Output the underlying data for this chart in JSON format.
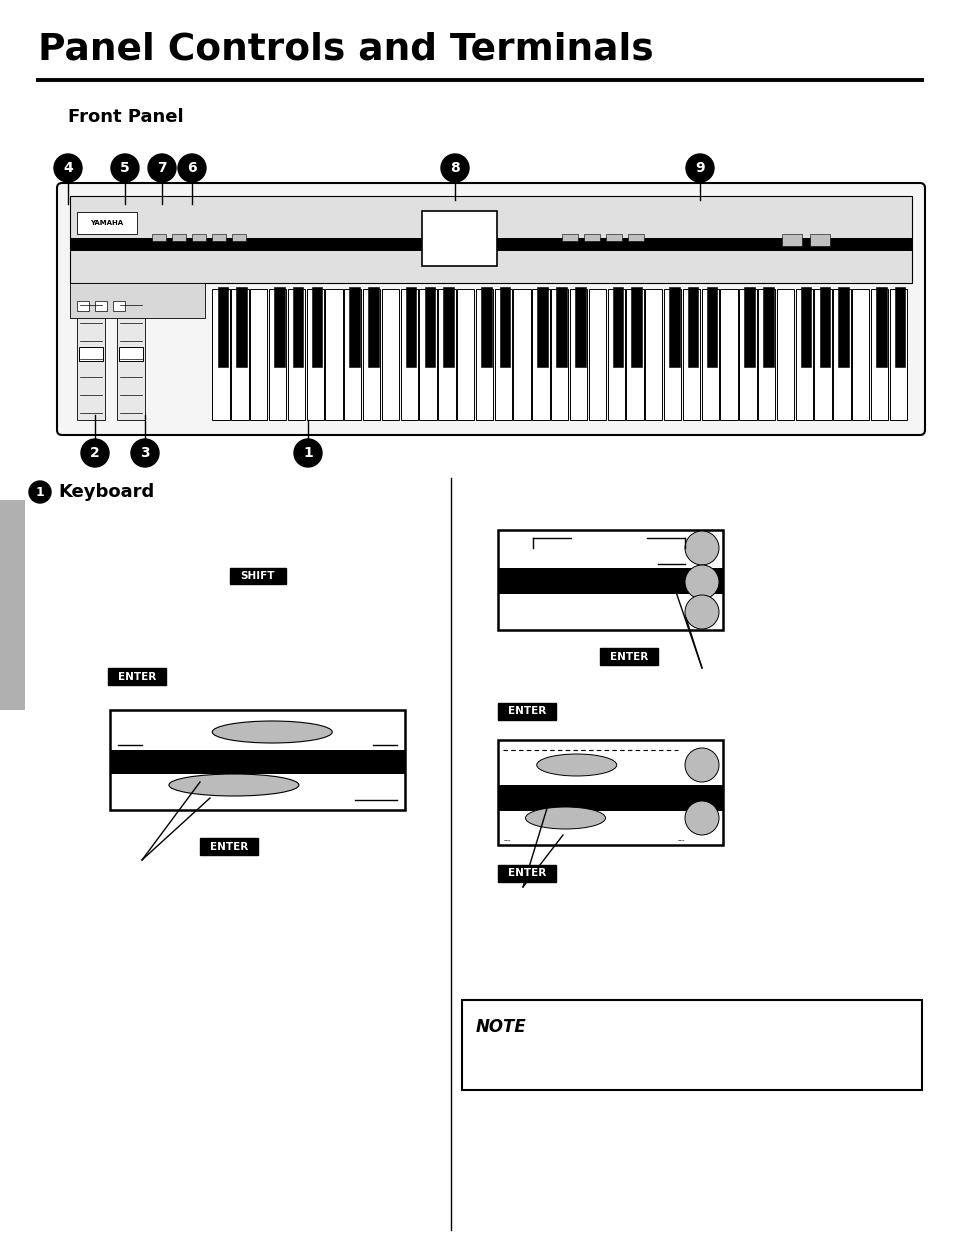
{
  "title": "Panel Controls and Terminals",
  "subtitle": "Front Panel",
  "keyboard_label": "Keyboard",
  "bg_color": "#ffffff",
  "note_label": "NOTE",
  "shift_label": "SHIFT",
  "enter_label": "ENTER",
  "sidebar_color": "#b0b0b0",
  "gray_oval_color": "#bbbbbb",
  "fig_w": 9.54,
  "fig_h": 12.44,
  "dpi": 100
}
